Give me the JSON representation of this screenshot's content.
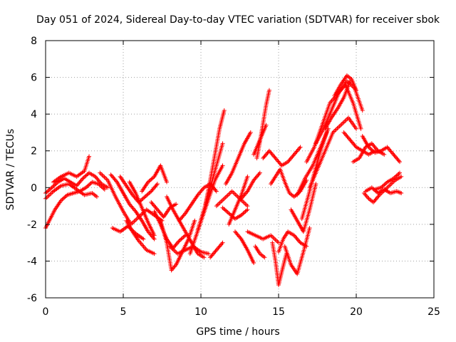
{
  "chart_data": {
    "type": "scatter",
    "title": "Day 051 of 2024, Sidereal Day-to-day VTEC variation (SDTVAR) for receiver sbok",
    "xlabel": "GPS time / hours",
    "ylabel": "SDTVAR / TECUs",
    "xlim": [
      0,
      25
    ],
    "ylim": [
      -6,
      8
    ],
    "xticks": [
      "0",
      "5",
      "10",
      "15",
      "20",
      "25"
    ],
    "yticks": [
      "-6",
      "-4",
      "-2",
      "0",
      "2",
      "4",
      "6",
      "8"
    ],
    "grid": true,
    "marker": "plus",
    "color": "#ff0000",
    "series": [
      {
        "x": [
          0.0,
          0.4,
          0.8,
          1.2,
          1.6,
          2.0,
          2.4,
          2.8,
          3.2,
          3.6,
          4.0
        ],
        "y": [
          -0.3,
          0.0,
          0.3,
          0.5,
          0.3,
          0.1,
          0.5,
          0.8,
          0.6,
          0.2,
          0.0
        ]
      },
      {
        "x": [
          0.0,
          0.3,
          0.6,
          1.0,
          1.4,
          1.8,
          2.2,
          2.6,
          3.0,
          3.4,
          3.8
        ],
        "y": [
          -2.2,
          -1.7,
          -1.2,
          -0.7,
          -0.4,
          -0.3,
          -0.2,
          0.0,
          0.3,
          0.2,
          -0.1
        ]
      },
      {
        "x": [
          0.0,
          0.5,
          1.0,
          1.5,
          2.0,
          2.5,
          3.0,
          3.3
        ],
        "y": [
          -0.6,
          -0.2,
          0.1,
          0.2,
          -0.1,
          -0.4,
          -0.3,
          -0.5
        ]
      },
      {
        "x": [
          0.5,
          1.0,
          1.5,
          2.0,
          2.5,
          2.8
        ],
        "y": [
          0.3,
          0.6,
          0.8,
          0.6,
          0.9,
          1.7
        ]
      },
      {
        "x": [
          3.5,
          4.0,
          4.5,
          5.0,
          5.5,
          6.0,
          6.5,
          7.0,
          7.5
        ],
        "y": [
          0.8,
          0.4,
          -0.5,
          -1.3,
          -2.0,
          -1.6,
          -1.2,
          -1.5,
          -1.8
        ]
      },
      {
        "x": [
          4.2,
          4.6,
          5.0,
          5.4,
          5.8,
          6.2,
          6.6,
          7.0
        ],
        "y": [
          0.7,
          0.3,
          -0.3,
          -0.9,
          -1.3,
          -1.8,
          -2.4,
          -2.8
        ]
      },
      {
        "x": [
          4.3,
          4.8,
          5.3,
          5.8,
          6.3
        ],
        "y": [
          -2.2,
          -2.4,
          -2.1,
          -2.5,
          -2.8
        ]
      },
      {
        "x": [
          4.8,
          5.2,
          5.6,
          6.0,
          6.4,
          6.8,
          7.2
        ],
        "y": [
          0.6,
          0.1,
          -0.4,
          -0.8,
          -0.5,
          -0.2,
          0.2
        ]
      },
      {
        "x": [
          5.2,
          5.6,
          6.0,
          6.5,
          7.0
        ],
        "y": [
          -1.8,
          -2.4,
          -2.9,
          -3.4,
          -3.6
        ]
      },
      {
        "x": [
          5.4,
          5.8,
          6.2,
          6.6,
          7.0
        ],
        "y": [
          0.3,
          -0.3,
          -1.1,
          -1.9,
          -2.6
        ]
      },
      {
        "x": [
          6.2,
          6.6,
          7.0,
          7.4,
          7.8
        ],
        "y": [
          -0.2,
          0.3,
          0.6,
          1.2,
          0.3
        ]
      },
      {
        "x": [
          6.8,
          7.2,
          7.6,
          8.0,
          8.4
        ],
        "y": [
          -0.8,
          -1.2,
          -1.6,
          -1.1,
          -0.9
        ]
      },
      {
        "x": [
          7.0,
          7.4,
          7.8,
          8.2,
          8.6,
          9.0
        ],
        "y": [
          -1.3,
          -2.0,
          -2.8,
          -3.3,
          -2.9,
          -2.6
        ]
      },
      {
        "x": [
          7.4,
          7.8,
          8.1,
          8.4,
          8.8,
          9.2,
          9.6
        ],
        "y": [
          -1.8,
          -3.0,
          -4.5,
          -4.2,
          -3.5,
          -2.8,
          -1.8
        ]
      },
      {
        "x": [
          7.8,
          8.2,
          8.6,
          9.0,
          9.4,
          9.8,
          10.2
        ],
        "y": [
          -0.5,
          -1.2,
          -1.8,
          -2.4,
          -3.0,
          -3.6,
          -3.8
        ]
      },
      {
        "x": [
          8.0,
          8.5,
          9.0,
          9.5,
          10.0,
          10.5
        ],
        "y": [
          -3.2,
          -3.6,
          -3.4,
          -3.2,
          -3.5,
          -3.6
        ]
      },
      {
        "x": [
          8.6,
          9.0,
          9.4,
          9.8,
          10.2,
          10.6,
          11.0
        ],
        "y": [
          -1.8,
          -1.4,
          -0.9,
          -0.4,
          0.0,
          0.2,
          -0.2
        ]
      },
      {
        "x": [
          9.3,
          9.7,
          10.1,
          10.5,
          10.9,
          11.4
        ],
        "y": [
          -3.6,
          -2.6,
          -1.6,
          -0.6,
          0.4,
          1.2
        ]
      },
      {
        "x": [
          9.8,
          10.2,
          10.6,
          11.0,
          11.4
        ],
        "y": [
          -2.3,
          -1.2,
          0.0,
          1.2,
          2.4
        ]
      },
      {
        "x": [
          10.3,
          10.6,
          10.9,
          11.2,
          11.5
        ],
        "y": [
          -0.9,
          0.4,
          1.8,
          3.2,
          4.2
        ]
      },
      {
        "x": [
          10.6,
          11.0,
          11.4
        ],
        "y": [
          -3.8,
          -3.4,
          -3.0
        ]
      },
      {
        "x": [
          11.0,
          11.5,
          12.0,
          12.5,
          13.0
        ],
        "y": [
          -1.0,
          -0.6,
          -0.2,
          -0.6,
          -1.0
        ]
      },
      {
        "x": [
          11.4,
          11.8,
          12.2,
          12.6,
          13.0
        ],
        "y": [
          -1.1,
          -1.4,
          -1.7,
          -1.5,
          -1.2
        ]
      },
      {
        "x": [
          11.6,
          12.0,
          12.4,
          12.8,
          13.2
        ],
        "y": [
          0.2,
          0.8,
          1.6,
          2.4,
          3.0
        ]
      },
      {
        "x": [
          11.8,
          12.2,
          12.6,
          13.0
        ],
        "y": [
          -2.0,
          -1.2,
          -0.4,
          0.6
        ]
      },
      {
        "x": [
          12.2,
          12.6,
          13.0,
          13.4
        ],
        "y": [
          -2.4,
          -2.8,
          -3.4,
          -4.1
        ]
      },
      {
        "x": [
          12.6,
          13.0,
          13.4,
          13.8
        ],
        "y": [
          -0.6,
          -0.2,
          0.4,
          0.8
        ]
      },
      {
        "x": [
          13.4,
          13.8,
          14.2
        ],
        "y": [
          1.8,
          2.6,
          3.4
        ]
      },
      {
        "x": [
          13.6,
          13.8,
          14.0,
          14.2,
          14.4
        ],
        "y": [
          1.6,
          2.5,
          3.5,
          4.5,
          5.3
        ]
      },
      {
        "x": [
          13.5,
          13.8,
          14.1
        ],
        "y": [
          -3.2,
          -3.6,
          -3.8
        ]
      },
      {
        "x": [
          13.0,
          13.5,
          14.0,
          14.5,
          15.0
        ],
        "y": [
          -2.4,
          -2.6,
          -2.8,
          -2.6,
          -3.0
        ]
      },
      {
        "x": [
          14.0,
          14.4,
          14.8,
          15.2,
          15.6,
          16.0,
          16.4
        ],
        "y": [
          1.6,
          2.0,
          1.6,
          1.2,
          1.4,
          1.8,
          2.2
        ]
      },
      {
        "x": [
          14.5,
          14.8,
          15.1,
          15.4,
          15.7,
          16.0,
          16.4,
          16.8
        ],
        "y": [
          0.2,
          0.6,
          1.0,
          0.3,
          -0.3,
          -0.5,
          -0.2,
          0.4
        ]
      },
      {
        "x": [
          14.6,
          14.8,
          15.0,
          15.2,
          15.5
        ],
        "y": [
          -3.0,
          -4.0,
          -5.3,
          -4.6,
          -3.6
        ]
      },
      {
        "x": [
          15.0,
          15.3,
          15.6,
          16.0,
          16.4,
          16.8
        ],
        "y": [
          -3.5,
          -2.8,
          -2.4,
          -2.6,
          -3.0,
          -3.2
        ]
      },
      {
        "x": [
          15.4,
          15.8,
          16.2,
          16.6,
          17.0
        ],
        "y": [
          -3.2,
          -4.2,
          -4.7,
          -3.5,
          -2.2
        ]
      },
      {
        "x": [
          15.8,
          16.2,
          16.6,
          17.0,
          17.4
        ],
        "y": [
          -1.2,
          -1.8,
          -2.4,
          -1.2,
          0.2
        ]
      },
      {
        "x": [
          16.5,
          16.9,
          17.3,
          17.7,
          18.1
        ],
        "y": [
          -1.7,
          -0.5,
          0.8,
          2.0,
          3.0
        ]
      },
      {
        "x": [
          16.2,
          16.7,
          17.2,
          17.7,
          18.2
        ],
        "y": [
          -0.4,
          0.5,
          1.2,
          2.2,
          3.2
        ]
      },
      {
        "x": [
          16.8,
          17.3,
          17.8,
          18.3,
          18.8,
          19.3,
          19.8,
          20.3
        ],
        "y": [
          1.4,
          2.2,
          3.4,
          4.6,
          5.1,
          5.6,
          4.6,
          3.2
        ]
      },
      {
        "x": [
          17.0,
          17.5,
          18.0,
          18.5,
          19.0,
          19.5,
          20.0
        ],
        "y": [
          0.0,
          1.0,
          2.0,
          3.0,
          3.4,
          3.8,
          3.2
        ]
      },
      {
        "x": [
          17.4,
          17.9,
          18.4,
          18.9,
          19.4,
          19.9,
          20.4
        ],
        "y": [
          2.4,
          3.2,
          4.2,
          5.2,
          5.8,
          5.4,
          4.2
        ]
      },
      {
        "x": [
          18.0,
          18.4,
          18.8,
          19.2,
          19.6
        ],
        "y": [
          3.2,
          3.8,
          4.3,
          4.9,
          5.8
        ]
      },
      {
        "x": [
          18.6,
          19.0,
          19.4,
          19.7,
          20.0
        ],
        "y": [
          5.0,
          5.6,
          6.1,
          5.9,
          5.3
        ]
      },
      {
        "x": [
          19.2,
          19.6,
          20.0,
          20.4,
          20.8,
          21.2
        ],
        "y": [
          3.0,
          2.6,
          2.2,
          2.0,
          1.8,
          2.0
        ]
      },
      {
        "x": [
          19.8,
          20.2,
          20.6,
          21.0,
          21.4,
          21.8
        ],
        "y": [
          1.4,
          1.6,
          2.2,
          2.4,
          2.0,
          1.8
        ]
      },
      {
        "x": [
          20.4,
          20.8,
          21.2,
          21.6,
          22.0,
          22.4,
          22.8
        ],
        "y": [
          2.8,
          2.2,
          1.9,
          2.0,
          2.2,
          1.8,
          1.4
        ]
      },
      {
        "x": [
          20.5,
          20.8,
          21.1,
          21.5,
          22.0,
          22.5,
          22.9
        ],
        "y": [
          -0.3,
          -0.6,
          -0.8,
          -0.4,
          0.0,
          0.4,
          0.6
        ]
      },
      {
        "x": [
          20.6,
          21.0,
          21.4,
          21.8,
          22.2,
          22.6,
          22.9
        ],
        "y": [
          -0.2,
          0.0,
          -0.3,
          -0.1,
          -0.3,
          -0.2,
          -0.3
        ]
      },
      {
        "x": [
          21.2,
          21.6,
          22.0,
          22.4,
          22.8
        ],
        "y": [
          -0.1,
          0.0,
          0.3,
          0.5,
          0.8
        ]
      }
    ]
  }
}
